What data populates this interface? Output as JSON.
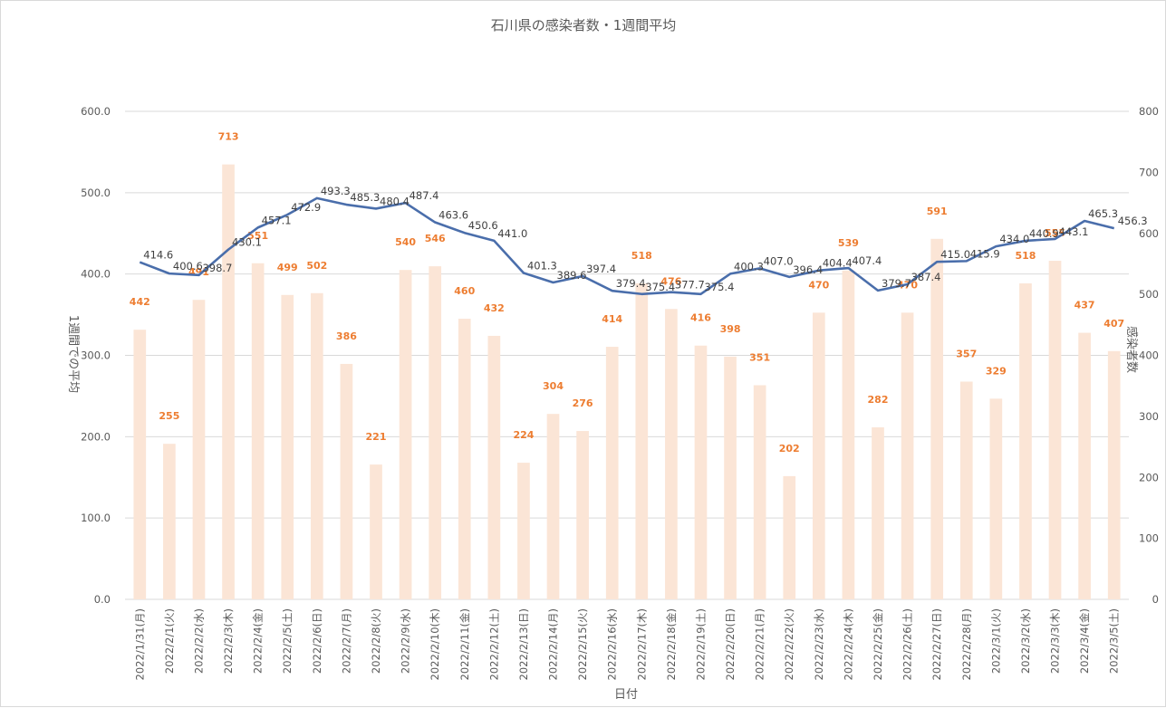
{
  "chart_data": {
    "type": "bar",
    "title": "石川県の感染者数・1週間平均",
    "xlabel": "日付",
    "ylabel_left": "1週間での平均",
    "ylabel_right": "感染者数",
    "categories": [
      "2022/1/31(月)",
      "2022/2/1(火)",
      "2022/2/2(水)",
      "2022/2/3(木)",
      "2022/2/4(金)",
      "2022/2/5(土)",
      "2022/2/6(日)",
      "2022/2/7(月)",
      "2022/2/8(火)",
      "2022/2/9(水)",
      "2022/2/10(木)",
      "2022/2/11(金)",
      "2022/2/12(土)",
      "2022/2/13(日)",
      "2022/2/14(月)",
      "2022/2/15(火)",
      "2022/2/16(水)",
      "2022/2/17(木)",
      "2022/2/18(金)",
      "2022/2/19(土)",
      "2022/2/20(日)",
      "2022/2/21(月)",
      "2022/2/22(火)",
      "2022/2/23(水)",
      "2022/2/24(木)",
      "2022/2/25(金)",
      "2022/2/26(土)",
      "2022/2/27(日)",
      "2022/2/28(月)",
      "2022/3/1(火)",
      "2022/3/2(水)",
      "2022/3/3(木)",
      "2022/3/4(金)",
      "2022/3/5(土)"
    ],
    "series": [
      {
        "name": "感染者数",
        "type": "bar",
        "axis": "right",
        "color": "#fbe5d6",
        "label_color": "#ed7d31",
        "values": [
          442,
          255,
          491,
          713,
          551,
          499,
          502,
          386,
          221,
          540,
          546,
          460,
          432,
          224,
          304,
          276,
          414,
          518,
          476,
          416,
          398,
          351,
          202,
          470,
          539,
          282,
          470,
          591,
          357,
          329,
          518,
          555,
          437,
          407
        ]
      },
      {
        "name": "1週間平均",
        "type": "line",
        "axis": "left",
        "color": "#4a6eab",
        "values": [
          414.6,
          400.6,
          398.7,
          430.1,
          457.1,
          472.9,
          493.3,
          485.3,
          480.4,
          487.4,
          463.6,
          450.6,
          441.0,
          401.3,
          389.6,
          397.4,
          379.4,
          375.4,
          377.7,
          375.4,
          400.3,
          407.0,
          396.4,
          404.4,
          407.4,
          379.7,
          387.4,
          415.0,
          415.9,
          434.0,
          440.9,
          443.1,
          465.3,
          456.3
        ]
      }
    ],
    "bar_labels": [
      "442",
      "255",
      "491",
      "713",
      "551",
      "499",
      "502",
      "386",
      "221",
      "540",
      "546",
      "460",
      "432",
      "224",
      "304",
      "276",
      "414",
      "518",
      "476",
      "416",
      "398",
      "351",
      "202",
      "470",
      "539",
      "282",
      "470",
      "591",
      "357",
      "329",
      "518",
      "555",
      "437",
      "407"
    ],
    "line_labels": [
      "414.6",
      "400.6",
      "398.7",
      "430.1",
      "457.1",
      "472.9",
      "493.3",
      "485.3",
      "480.4",
      "487.4",
      "463.6",
      "450.6",
      "441.0",
      "401.3",
      "389.6",
      "397.4",
      "379.4",
      "375.4",
      "377.7",
      "375.4",
      "400.3",
      "407.0",
      "396.4",
      "404.4",
      "407.4",
      "379.7",
      "387.4",
      "415.0",
      "415.9",
      "434.0",
      "440.9",
      "443.1",
      "465.3",
      "456.3"
    ],
    "y_left": {
      "min": 0,
      "max": 600,
      "ticks": [
        "0.0",
        "100.0",
        "200.0",
        "300.0",
        "400.0",
        "500.0",
        "600.0"
      ]
    },
    "y_right": {
      "min": 0,
      "max": 800,
      "ticks": [
        "0",
        "100",
        "200",
        "300",
        "400",
        "500",
        "600",
        "700",
        "800"
      ]
    },
    "grid": true,
    "legend": "none"
  }
}
